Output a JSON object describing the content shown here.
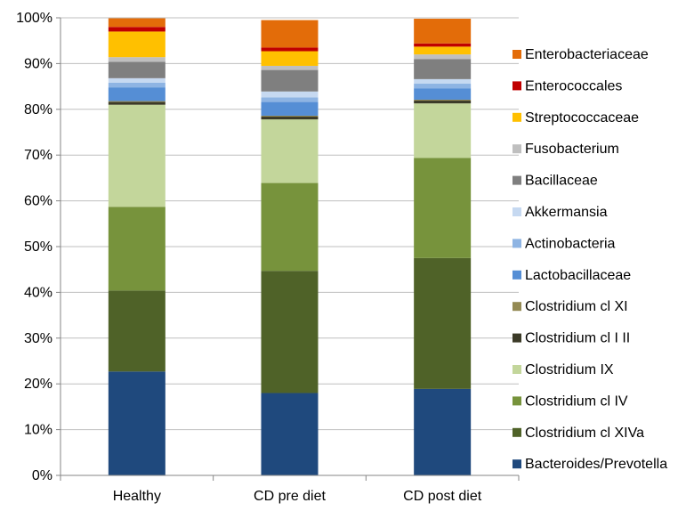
{
  "chart_data": {
    "type": "bar",
    "stacked": true,
    "percent": true,
    "title": "",
    "xlabel": "",
    "ylabel": "",
    "ylim": [
      0,
      100
    ],
    "y_ticks": [
      "0%",
      "10%",
      "20%",
      "30%",
      "40%",
      "50%",
      "60%",
      "70%",
      "80%",
      "90%",
      "100%"
    ],
    "grid": true,
    "legend_position": "right",
    "categories": [
      "Healthy",
      "CD pre diet",
      "CD post diet"
    ],
    "series": [
      {
        "name": "Bacteroides/Prevotella",
        "color": "#1F497D",
        "values": [
          22.7,
          18.0,
          18.9
        ]
      },
      {
        "name": "Clostridium cl XIVa",
        "color": "#4F6228",
        "values": [
          17.7,
          26.7,
          28.6
        ]
      },
      {
        "name": "Clostridium cl IV",
        "color": "#77933C",
        "values": [
          18.3,
          19.2,
          21.9
        ]
      },
      {
        "name": "Clostridium IX",
        "color": "#C3D69B",
        "values": [
          22.3,
          13.9,
          11.9
        ]
      },
      {
        "name": "Clostridium cl I II",
        "color": "#3B3A27",
        "values": [
          0.6,
          0.6,
          0.6
        ]
      },
      {
        "name": "Clostridium cl XI",
        "color": "#948A54",
        "values": [
          0.2,
          0.2,
          0.2
        ]
      },
      {
        "name": "Lactobacillaceae",
        "color": "#558ED5",
        "values": [
          3.0,
          3.0,
          2.5
        ]
      },
      {
        "name": "Actinobacteria",
        "color": "#8EB4E3",
        "values": [
          1.0,
          1.0,
          1.0
        ]
      },
      {
        "name": "Akkermansia",
        "color": "#C6D9F1",
        "values": [
          1.0,
          1.3,
          1.0
        ]
      },
      {
        "name": "Bacillaceae",
        "color": "#7F7F7F",
        "values": [
          3.6,
          4.7,
          4.4
        ]
      },
      {
        "name": "Fusobacterium",
        "color": "#BFBFBF",
        "values": [
          1.0,
          0.9,
          1.0
        ]
      },
      {
        "name": "Streptococcaceae",
        "color": "#FFC000",
        "values": [
          5.6,
          3.2,
          1.7
        ]
      },
      {
        "name": "Enterococcales",
        "color": "#C00000",
        "values": [
          1.0,
          0.8,
          0.7
        ]
      },
      {
        "name": "Enterobacteriaceae",
        "color": "#E36C09",
        "values": [
          1.9,
          6.0,
          5.4
        ]
      }
    ]
  }
}
